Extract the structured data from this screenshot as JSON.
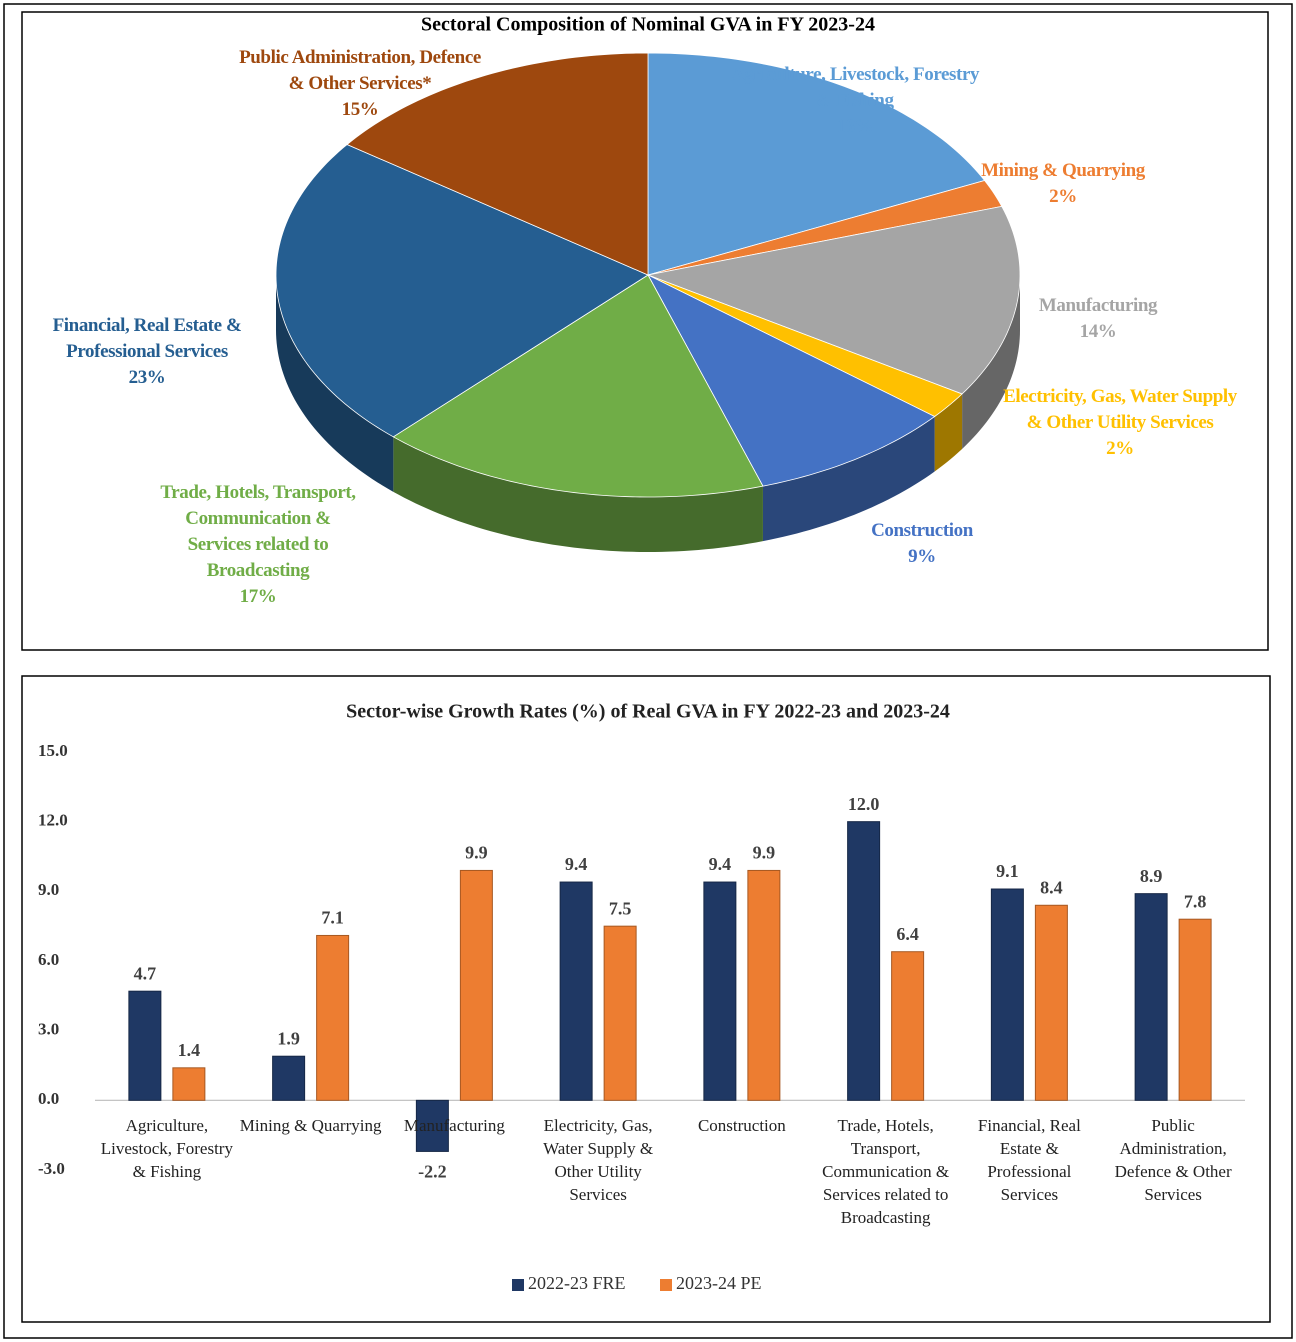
{
  "chart_data": [
    {
      "type": "pie",
      "title": "Sectoral Composition of Nominal GVA in FY 2023-24",
      "categories": [
        "Agriculture, Livestock, Forestry & Fishing",
        "Mining & Quarrying",
        "Manufacturing",
        "Electricity, Gas, Water Supply & Other Utility Services",
        "Construction",
        "Trade, Hotels, Transport, Communication & Services related to Broadcasting",
        "Financial, Real Estate & Professional Services",
        "Public Administration, Defence & Other Services*"
      ],
      "values": [
        18,
        2,
        14,
        2,
        9,
        17,
        23,
        15
      ],
      "value_labels": [
        "18%",
        "2%",
        "14%",
        "2%",
        "9%",
        "17%",
        "23%",
        "15%"
      ],
      "colors": [
        "#5b9bd5",
        "#ed7d31",
        "#a5a5a5",
        "#ffc000",
        "#4472c4",
        "#70ad47",
        "#255e91",
        "#9e480e"
      ]
    },
    {
      "type": "bar",
      "title": "Sector-wise Growth Rates (%) of Real GVA in FY 2022-23 and 2023-24",
      "categories": [
        "Agriculture, Livestock, Forestry & Fishing",
        "Mining & Quarrying",
        "Manufacturing",
        "Electricity, Gas, Water Supply & Other Utility Services",
        "Construction",
        "Trade, Hotels, Transport, Communication & Services related to Broadcasting",
        "Financial, Real Estate & Professional Services",
        "Public Administration, Defence & Other Services"
      ],
      "series": [
        {
          "name": "2022-23 FRE",
          "color": "#1f3864",
          "values": [
            4.7,
            1.9,
            -2.2,
            9.4,
            9.4,
            12.0,
            9.1,
            8.9
          ],
          "value_labels": [
            "4.7",
            "1.9",
            "-2.2",
            "9.4",
            "9.4",
            "12.0",
            "9.1",
            "8.9"
          ]
        },
        {
          "name": "2023-24 PE",
          "color": "#ed7d31",
          "values": [
            1.4,
            7.1,
            9.9,
            7.5,
            9.9,
            6.4,
            8.4,
            7.8
          ],
          "value_labels": [
            "1.4",
            "7.1",
            "9.9",
            "7.5",
            "9.9",
            "6.4",
            "8.4",
            "7.8"
          ]
        }
      ],
      "ylim": [
        -3,
        15
      ],
      "yticks": [
        {
          "value": -3,
          "label": "-3.0"
        },
        {
          "value": 0,
          "label": "0.0"
        },
        {
          "value": 3,
          "label": "3.0"
        },
        {
          "value": 6,
          "label": "6.0"
        },
        {
          "value": 9,
          "label": "9.0"
        },
        {
          "value": 12,
          "label": "12.0"
        },
        {
          "value": 15,
          "label": "15.0"
        }
      ],
      "grid": false,
      "legend": "bottom"
    }
  ]
}
